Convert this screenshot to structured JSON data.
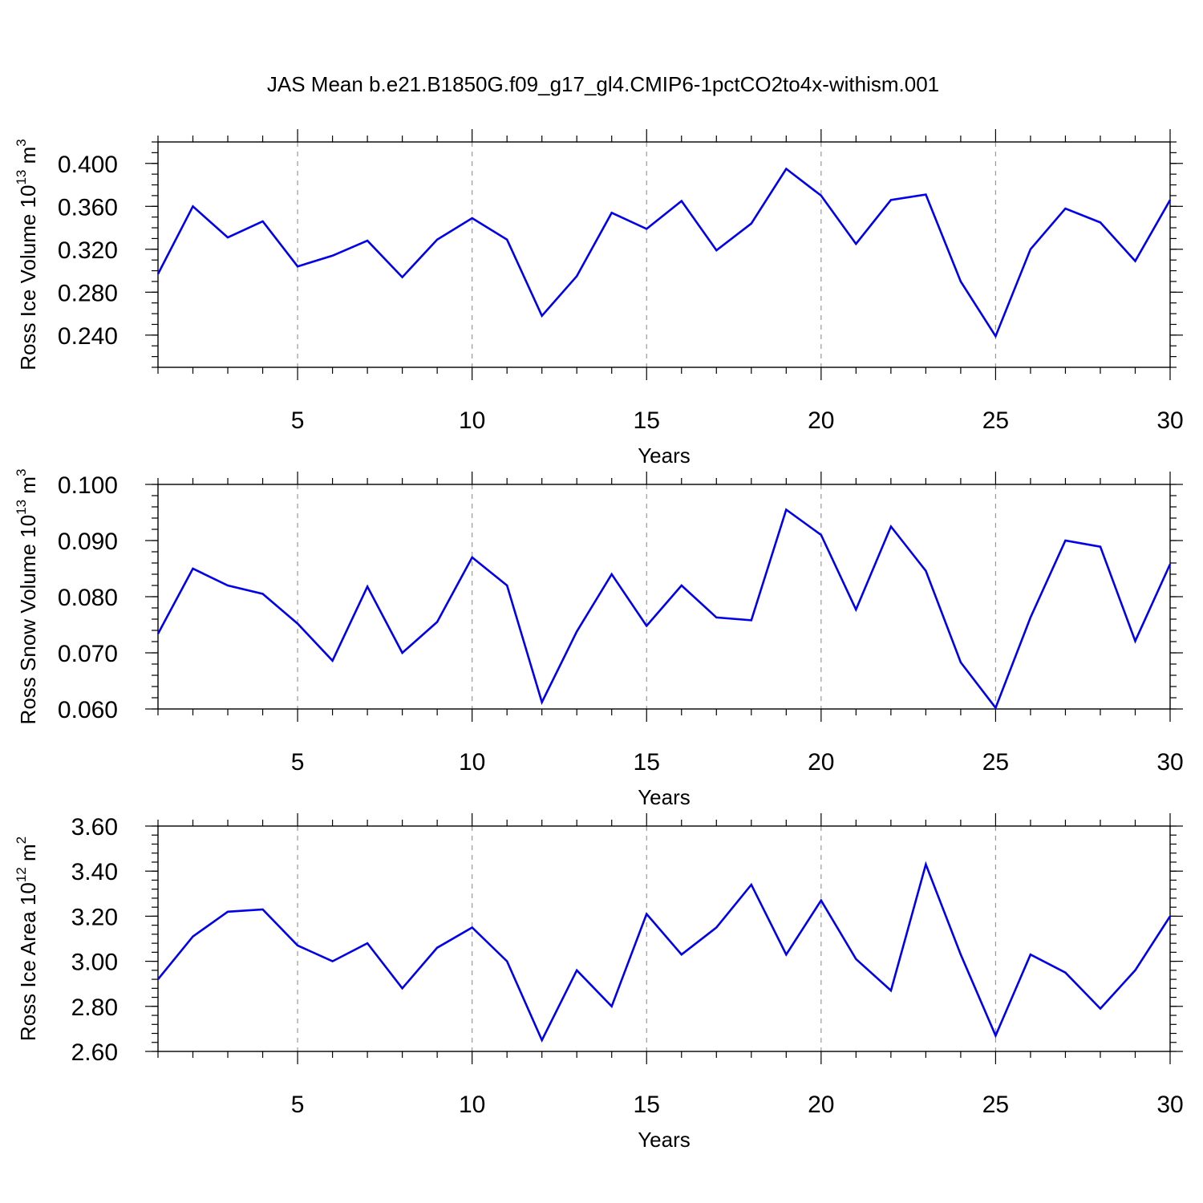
{
  "title": "JAS Mean b.e21.B1850G.f09_g17_gl4.CMIP6-1pctCO2to4x-withism.001",
  "chart_data": [
    {
      "type": "line",
      "name": "ice-volume",
      "ylabel": {
        "base": "Ross Ice Volume 10",
        "exp": "13",
        "unit": " m",
        "unit_exp": "3"
      },
      "xlabel": "Years",
      "xlim": [
        1,
        30
      ],
      "ylim": [
        0.21,
        0.42
      ],
      "x_major_ticks": [
        5,
        10,
        15,
        20,
        25,
        30
      ],
      "x_tick_labels": [
        "5",
        "10",
        "15",
        "20",
        "25",
        "30"
      ],
      "y_major_ticks": [
        0.24,
        0.28,
        0.32,
        0.36,
        0.4
      ],
      "y_tick_labels": [
        "0.240",
        "0.280",
        "0.320",
        "0.360",
        "0.400"
      ],
      "y_minor_step": 0.01,
      "gridlines_x": [
        5,
        10,
        15,
        20,
        25
      ],
      "line_color": "#0000ee",
      "x": [
        1,
        2,
        3,
        4,
        5,
        6,
        7,
        8,
        9,
        10,
        11,
        12,
        13,
        14,
        15,
        16,
        17,
        18,
        19,
        20,
        21,
        22,
        23,
        24,
        25,
        26,
        27,
        28,
        29,
        30
      ],
      "values": [
        0.297,
        0.36,
        0.331,
        0.346,
        0.304,
        0.314,
        0.328,
        0.294,
        0.329,
        0.349,
        0.329,
        0.258,
        0.295,
        0.354,
        0.339,
        0.365,
        0.319,
        0.344,
        0.395,
        0.37,
        0.325,
        0.366,
        0.371,
        0.29,
        0.239,
        0.32,
        0.358,
        0.345,
        0.309,
        0.366
      ]
    },
    {
      "type": "line",
      "name": "snow-volume",
      "ylabel": {
        "base": "Ross Snow Volume 10",
        "exp": "13",
        "unit": " m",
        "unit_exp": "3"
      },
      "xlabel": "Years",
      "xlim": [
        1,
        30
      ],
      "ylim": [
        0.06,
        0.1
      ],
      "x_major_ticks": [
        5,
        10,
        15,
        20,
        25,
        30
      ],
      "x_tick_labels": [
        "5",
        "10",
        "15",
        "20",
        "25",
        "30"
      ],
      "y_major_ticks": [
        0.06,
        0.07,
        0.08,
        0.09,
        0.1
      ],
      "y_tick_labels": [
        "0.060",
        "0.070",
        "0.080",
        "0.090",
        "0.100"
      ],
      "y_minor_step": 0.002,
      "gridlines_x": [
        5,
        10,
        15,
        20,
        25
      ],
      "line_color": "#0000ee",
      "x": [
        1,
        2,
        3,
        4,
        5,
        6,
        7,
        8,
        9,
        10,
        11,
        12,
        13,
        14,
        15,
        16,
        17,
        18,
        19,
        20,
        21,
        22,
        23,
        24,
        25,
        26,
        27,
        28,
        29,
        30
      ],
      "values": [
        0.0734,
        0.085,
        0.082,
        0.0805,
        0.0752,
        0.0686,
        0.0818,
        0.07,
        0.0755,
        0.087,
        0.082,
        0.0612,
        0.0738,
        0.084,
        0.0748,
        0.082,
        0.0763,
        0.0758,
        0.0955,
        0.091,
        0.0777,
        0.0925,
        0.0846,
        0.0683,
        0.0602,
        0.0763,
        0.09,
        0.0889,
        0.0721,
        0.0858
      ]
    },
    {
      "type": "line",
      "name": "ice-area",
      "ylabel": {
        "base": "Ross Ice Area 10",
        "exp": "12",
        "unit": " m",
        "unit_exp": "2"
      },
      "xlabel": "Years",
      "xlim": [
        1,
        30
      ],
      "ylim": [
        2.6,
        3.6
      ],
      "x_major_ticks": [
        5,
        10,
        15,
        20,
        25,
        30
      ],
      "x_tick_labels": [
        "5",
        "10",
        "15",
        "20",
        "25",
        "30"
      ],
      "y_major_ticks": [
        2.6,
        2.8,
        3.0,
        3.2,
        3.4,
        3.6
      ],
      "y_tick_labels": [
        "2.60",
        "2.80",
        "3.00",
        "3.20",
        "3.40",
        "3.60"
      ],
      "y_minor_step": 0.04,
      "gridlines_x": [
        5,
        10,
        15,
        20,
        25
      ],
      "line_color": "#0000ee",
      "x": [
        1,
        2,
        3,
        4,
        5,
        6,
        7,
        8,
        9,
        10,
        11,
        12,
        13,
        14,
        15,
        16,
        17,
        18,
        19,
        20,
        21,
        22,
        23,
        24,
        25,
        26,
        27,
        28,
        29,
        30
      ],
      "values": [
        2.92,
        3.11,
        3.22,
        3.23,
        3.07,
        3.0,
        3.08,
        2.88,
        3.06,
        3.15,
        3.0,
        2.65,
        2.96,
        2.8,
        3.21,
        3.03,
        3.15,
        3.34,
        3.03,
        3.27,
        3.01,
        2.87,
        3.43,
        3.03,
        2.67,
        3.03,
        2.95,
        2.79,
        2.96,
        3.2
      ]
    }
  ]
}
